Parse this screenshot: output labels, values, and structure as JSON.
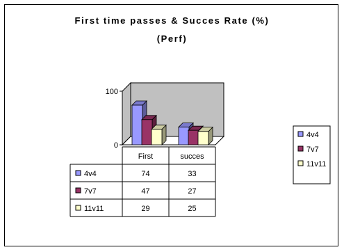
{
  "chart_data": {
    "type": "bar",
    "title": "First time passes & Succes Rate (%)",
    "subtitle": "(Perf)",
    "categories": [
      "First",
      "succes"
    ],
    "series": [
      {
        "name": "4v4",
        "values": [
          74,
          33
        ],
        "color": "#9999ff"
      },
      {
        "name": "7v7",
        "values": [
          47,
          27
        ],
        "color": "#993366"
      },
      {
        "name": "11v11",
        "values": [
          29,
          25
        ],
        "color": "#ffffcc"
      }
    ],
    "ylim": [
      0,
      100
    ],
    "yticks": [
      0,
      100
    ],
    "wall_color": "#c0c0c0",
    "grid": false,
    "legend": "right",
    "data_table": true
  }
}
